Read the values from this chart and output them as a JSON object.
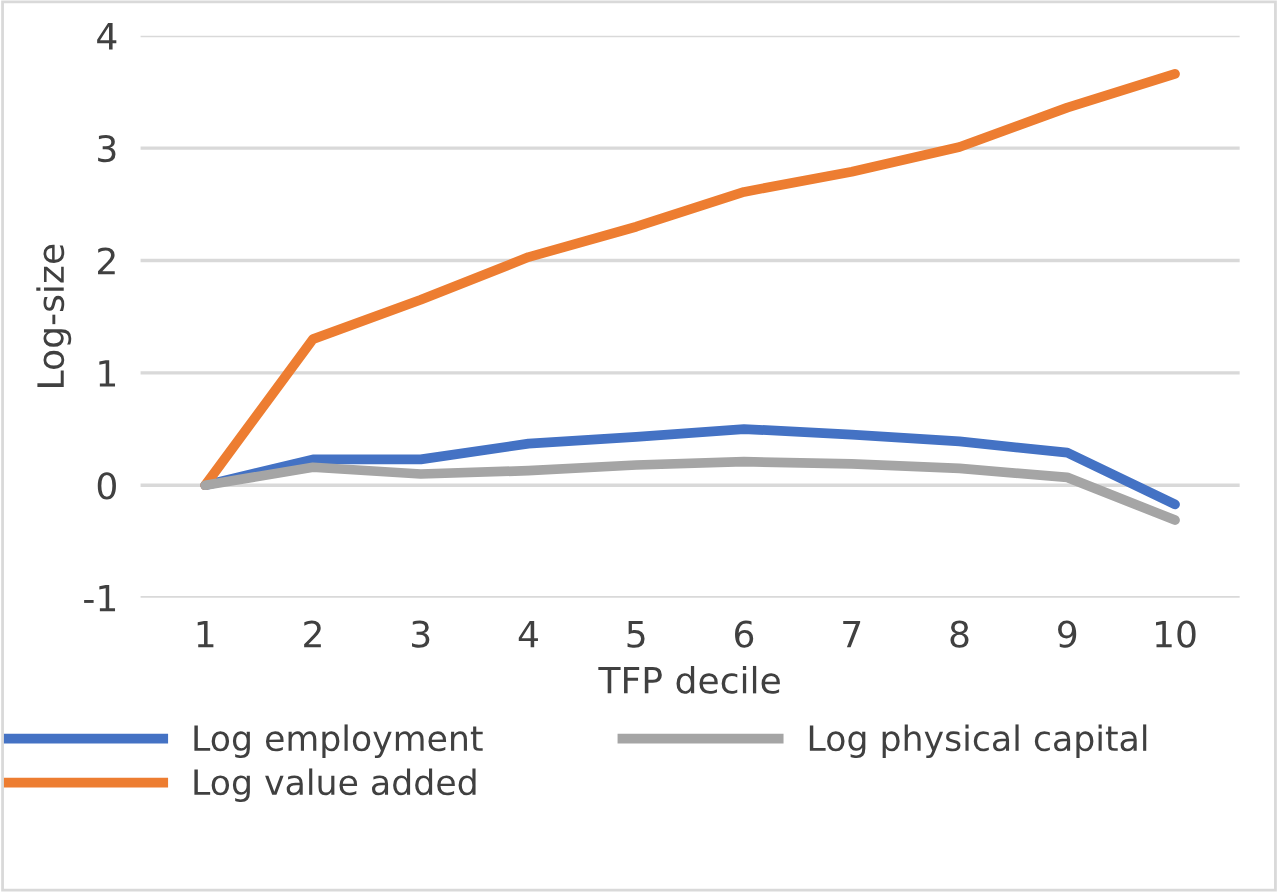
{
  "chart_data": {
    "type": "line",
    "xlabel": "TFP decile",
    "ylabel": "Log-size",
    "categories": [
      "1",
      "2",
      "3",
      "4",
      "5",
      "6",
      "7",
      "8",
      "9",
      "10"
    ],
    "series": [
      {
        "name": "Log employment",
        "color": "#4472c4",
        "values": [
          0,
          0.23,
          0.23,
          0.37,
          0.43,
          0.5,
          0.45,
          0.39,
          0.29,
          -0.17
        ]
      },
      {
        "name": "Log value added",
        "color": "#ed7d31",
        "values": [
          0,
          1.3,
          1.65,
          2.03,
          2.3,
          2.61,
          2.79,
          3.01,
          3.36,
          3.66
        ]
      },
      {
        "name": "Log physical capital",
        "color": "#a5a5a5",
        "values": [
          0,
          0.16,
          0.1,
          0.13,
          0.18,
          0.21,
          0.19,
          0.15,
          0.07,
          -0.31
        ]
      }
    ],
    "ylim": [
      -1,
      4
    ],
    "yticks": [
      -1,
      0,
      1,
      2,
      3,
      4
    ],
    "grid": "y",
    "legend": "bottom",
    "marker": "none",
    "line_style": "solid"
  }
}
